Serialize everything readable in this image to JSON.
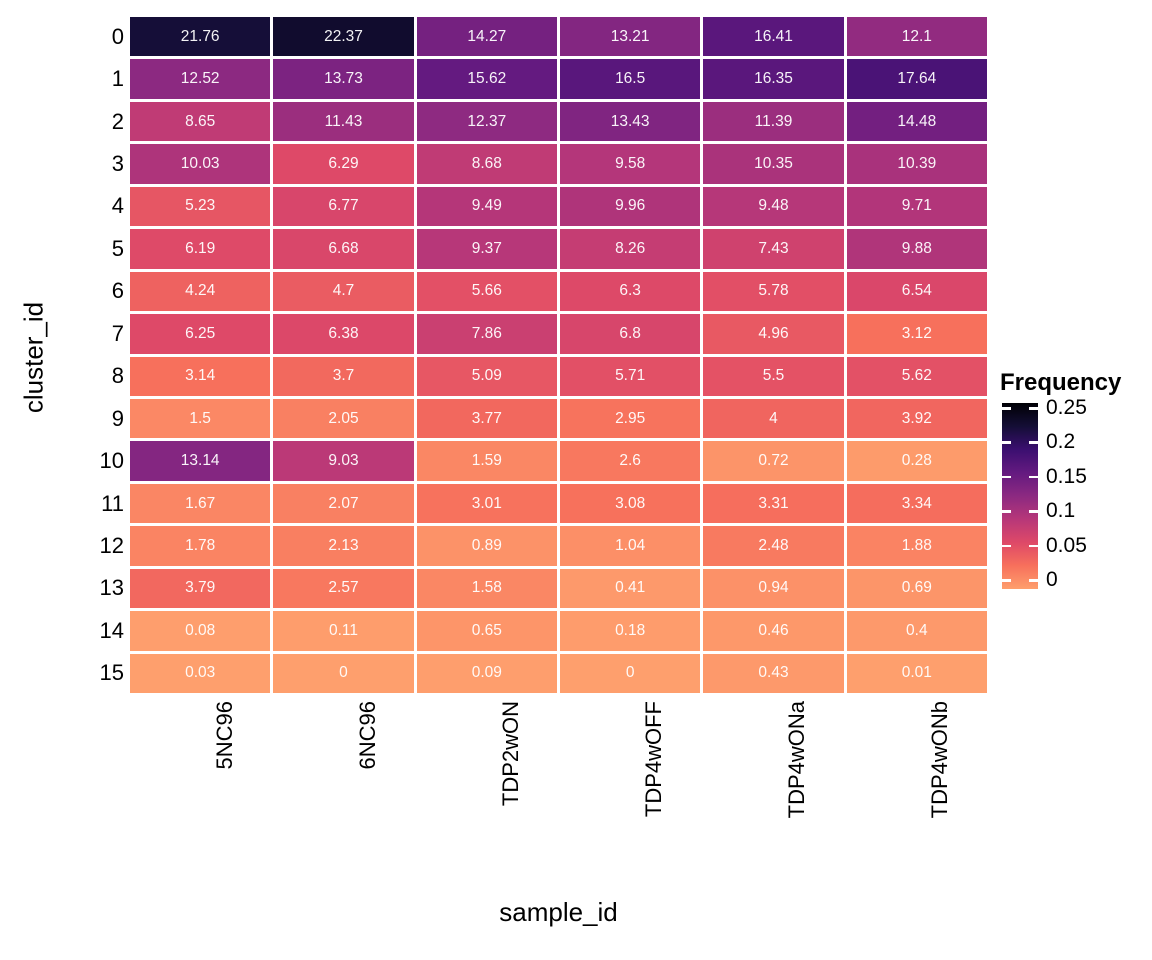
{
  "background": "#FFFFFF",
  "grid_gap_color": "#FFFFFF",
  "axis_text_color": "#000000",
  "cell_text_color": "#FFFFFF",
  "chart_data": {
    "type": "heatmap",
    "xlabel": "sample_id",
    "ylabel": "cluster_id",
    "grid": false,
    "legend_position": "right",
    "columns": [
      "5NC96",
      "6NC96",
      "TDP2wON",
      "TDP4wOFF",
      "TDP4wONa",
      "TDP4wONb"
    ],
    "rows": [
      "0",
      "1",
      "2",
      "3",
      "4",
      "5",
      "6",
      "7",
      "8",
      "9",
      "10",
      "11",
      "12",
      "13",
      "14",
      "15"
    ],
    "values_percent": [
      [
        21.76,
        22.37,
        14.27,
        13.21,
        16.41,
        12.1
      ],
      [
        12.52,
        13.73,
        15.62,
        16.5,
        16.35,
        17.64
      ],
      [
        8.65,
        11.43,
        12.37,
        13.43,
        11.39,
        14.48
      ],
      [
        10.03,
        6.29,
        8.68,
        9.58,
        10.35,
        10.39
      ],
      [
        5.23,
        6.77,
        9.49,
        9.96,
        9.48,
        9.71
      ],
      [
        6.19,
        6.68,
        9.37,
        8.26,
        7.43,
        9.88
      ],
      [
        4.24,
        4.7,
        5.66,
        6.3,
        5.78,
        6.54
      ],
      [
        6.25,
        6.38,
        7.86,
        6.8,
        4.96,
        3.12
      ],
      [
        3.14,
        3.7,
        5.09,
        5.71,
        5.5,
        5.62
      ],
      [
        1.5,
        2.05,
        3.77,
        2.95,
        4,
        3.92
      ],
      [
        13.14,
        9.03,
        1.59,
        2.6,
        0.72,
        0.28
      ],
      [
        1.67,
        2.07,
        3.01,
        3.08,
        3.31,
        3.34
      ],
      [
        1.78,
        2.13,
        0.89,
        1.04,
        2.48,
        1.88
      ],
      [
        3.79,
        2.57,
        1.58,
        0.41,
        0.94,
        0.69
      ],
      [
        0.08,
        0.11,
        0.65,
        0.18,
        0.46,
        0.4
      ],
      [
        0.03,
        0,
        0.09,
        0,
        0.43,
        0.01
      ]
    ],
    "legend": {
      "title": "Frequency",
      "ticks": [
        0.25,
        0.2,
        0.15,
        0.1,
        0.05,
        0
      ],
      "range": [
        0,
        0.25
      ]
    },
    "colormap": {
      "name": "magma-reversed",
      "low_to_high_stops": [
        "#FE9F6D",
        "#F7705C",
        "#DE4968",
        "#B73779",
        "#8C2981",
        "#641A80",
        "#3B0F70",
        "#140E36",
        "#000004"
      ]
    }
  }
}
